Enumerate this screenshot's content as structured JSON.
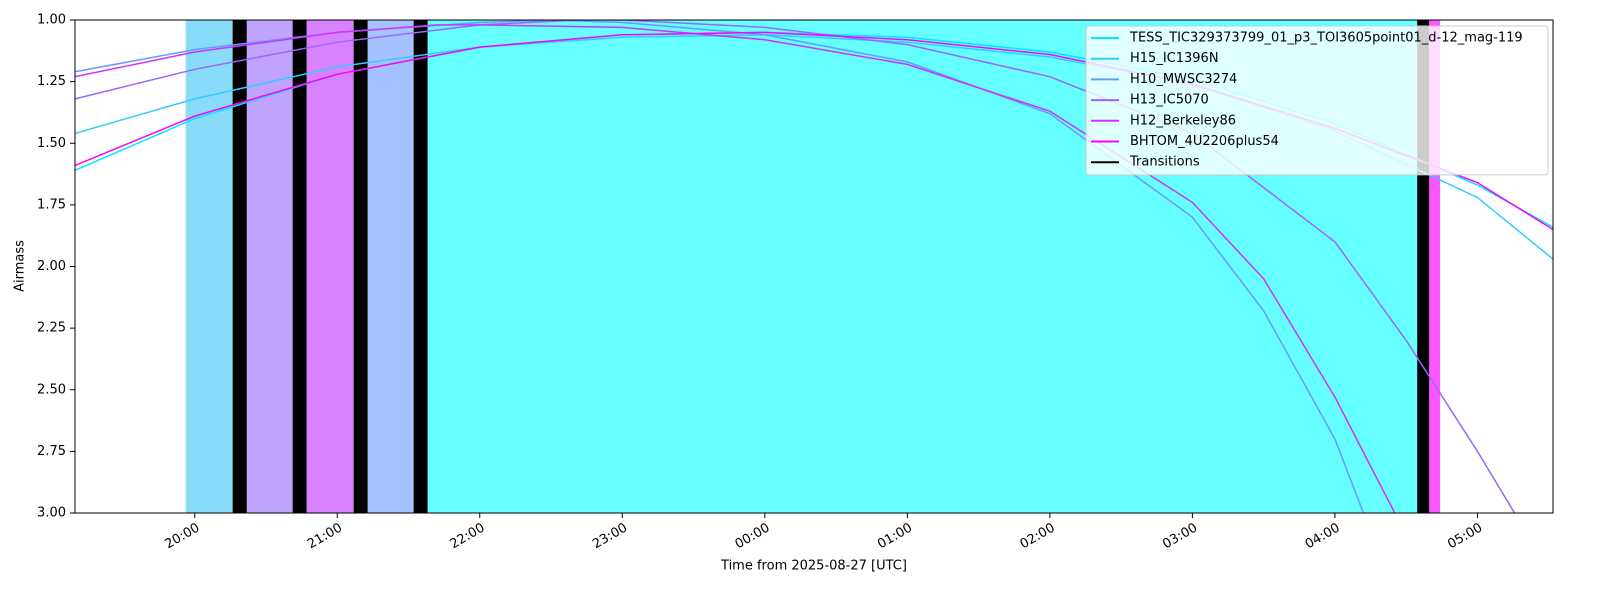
{
  "chart_data": {
    "type": "line",
    "xlabel": "Time from 2025-08-27 [UTC]",
    "ylabel": "Airmass",
    "xlim": [
      19.16,
      29.53
    ],
    "ylim": [
      3.0,
      1.0
    ],
    "xticks": [
      {
        "value": 20,
        "label": "20:00"
      },
      {
        "value": 21,
        "label": "21:00"
      },
      {
        "value": 22,
        "label": "22:00"
      },
      {
        "value": 23,
        "label": "23:00"
      },
      {
        "value": 24,
        "label": "00:00"
      },
      {
        "value": 25,
        "label": "01:00"
      },
      {
        "value": 26,
        "label": "02:00"
      },
      {
        "value": 27,
        "label": "03:00"
      },
      {
        "value": 28,
        "label": "04:00"
      },
      {
        "value": 29,
        "label": "05:00"
      }
    ],
    "yticks": [
      {
        "value": 1.0,
        "label": "1.00"
      },
      {
        "value": 1.25,
        "label": "1.25"
      },
      {
        "value": 1.5,
        "label": "1.50"
      },
      {
        "value": 1.75,
        "label": "1.75"
      },
      {
        "value": 2.0,
        "label": "2.00"
      },
      {
        "value": 2.25,
        "label": "2.25"
      },
      {
        "value": 2.5,
        "label": "2.50"
      },
      {
        "value": 2.75,
        "label": "2.75"
      },
      {
        "value": 3.0,
        "label": "3.00"
      }
    ],
    "grid": false,
    "legend": "upper right",
    "spans": [
      {
        "start": 19.937,
        "end": 20.266,
        "color": "#88dcfa"
      },
      {
        "start": 20.365,
        "end": 20.687,
        "color": "#c0a2ff"
      },
      {
        "start": 20.785,
        "end": 21.115,
        "color": "#d982ff"
      },
      {
        "start": 21.213,
        "end": 21.536,
        "color": "#a5c1ff"
      },
      {
        "start": 21.634,
        "end": 28.577,
        "color": "#66ffff"
      },
      {
        "start": 28.661,
        "end": 28.738,
        "color": "#ff55ff"
      }
    ],
    "transitions": [
      {
        "start": 20.266,
        "end": 20.365
      },
      {
        "start": 20.687,
        "end": 20.785
      },
      {
        "start": 21.115,
        "end": 21.213
      },
      {
        "start": 21.536,
        "end": 21.634
      },
      {
        "start": 28.577,
        "end": 28.661
      }
    ],
    "transitions_label": "Transitions",
    "transitions_color": "#000000",
    "series": [
      {
        "name": "TESS_TIC329373799_01_p3_TOI3605point01_d-12_mag-119",
        "color": "#00e8ff",
        "x": [
          19.16,
          20,
          21,
          22,
          23,
          24,
          25,
          26,
          27,
          28,
          29,
          29.53
        ],
        "values": [
          1.61,
          1.4,
          1.22,
          1.11,
          1.06,
          1.05,
          1.07,
          1.13,
          1.24,
          1.42,
          1.67,
          1.84
        ]
      },
      {
        "name": "H15_IC1396N",
        "color": "#33ccff",
        "x": [
          19.16,
          20,
          21,
          22,
          23,
          24,
          25,
          26,
          27,
          28,
          29,
          29.53
        ],
        "values": [
          1.46,
          1.32,
          1.19,
          1.11,
          1.07,
          1.06,
          1.09,
          1.15,
          1.26,
          1.45,
          1.72,
          1.97
        ]
      },
      {
        "name": "H10_MWSC3274",
        "color": "#6699ff",
        "x": [
          19.16,
          20,
          21,
          22,
          22.5,
          23,
          24,
          25,
          26,
          27,
          27.5,
          28,
          28.2
        ],
        "values": [
          1.21,
          1.12,
          1.05,
          1.01,
          1.0,
          1.01,
          1.06,
          1.17,
          1.38,
          1.8,
          2.18,
          2.7,
          3.0
        ]
      },
      {
        "name": "H13_IC5070",
        "color": "#9966ff",
        "x": [
          19.16,
          20,
          21,
          22,
          22.7,
          23,
          24,
          25,
          26,
          27,
          28,
          28.5,
          29,
          29.26
        ],
        "values": [
          1.32,
          1.2,
          1.09,
          1.02,
          1.0,
          1.0,
          1.03,
          1.1,
          1.23,
          1.46,
          1.9,
          2.3,
          2.75,
          3.0
        ]
      },
      {
        "name": "H12_Berkeley86",
        "color": "#cc33ff",
        "x": [
          19.16,
          20,
          21,
          21.7,
          22,
          23,
          24,
          25,
          26,
          27,
          27.5,
          28,
          28.42
        ],
        "values": [
          1.23,
          1.13,
          1.05,
          1.02,
          1.02,
          1.03,
          1.08,
          1.18,
          1.37,
          1.74,
          2.05,
          2.53,
          3.0
        ]
      },
      {
        "name": "BHTOM_4U2206plus54",
        "color": "#ff00ff",
        "x": [
          19.16,
          20,
          21,
          22,
          23,
          24,
          25,
          26,
          27,
          28,
          29,
          29.53
        ],
        "values": [
          1.59,
          1.39,
          1.22,
          1.11,
          1.06,
          1.05,
          1.08,
          1.14,
          1.26,
          1.44,
          1.66,
          1.85
        ]
      }
    ]
  }
}
